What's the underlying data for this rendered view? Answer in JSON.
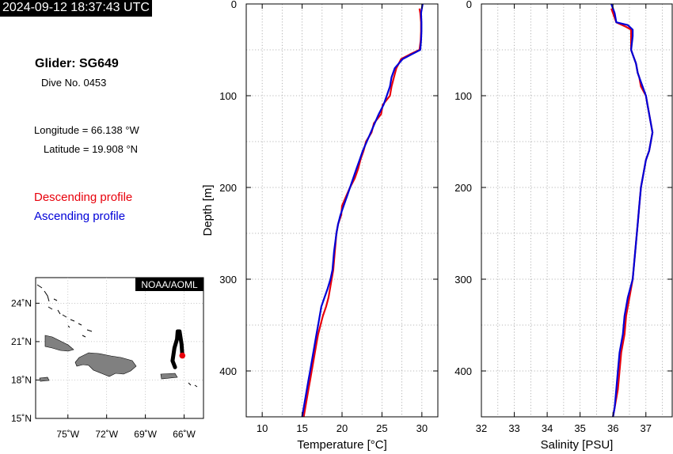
{
  "header": {
    "timestamp": "2024-09-12 18:37:43 UTC"
  },
  "info": {
    "glider": "Glider: SG649",
    "dive": "Dive No. 0453",
    "longitude": "Longitude = 66.138 °W",
    "latitude": "Latitude = 19.908 °N",
    "descending_label": "Descending profile",
    "ascending_label": "Ascending profile"
  },
  "colors": {
    "descending": "#e8000b",
    "ascending": "#0000d8",
    "land": "#808080",
    "track": "#000000"
  },
  "map": {
    "credit": "NOAA/AOML",
    "lon_ticks": [
      "75˚W",
      "72˚W",
      "69˚W",
      "66˚W"
    ],
    "lat_ticks": [
      "24˚N",
      "21˚N",
      "18˚N",
      "15˚N"
    ],
    "xlim": [
      -77.5,
      -64.5
    ],
    "ylim": [
      15,
      26
    ],
    "track": [
      [
        -66.7,
        19.0
      ],
      [
        -66.9,
        19.5
      ],
      [
        -66.75,
        20.5
      ],
      [
        -66.55,
        21.2
      ],
      [
        -66.5,
        21.8
      ],
      [
        -66.35,
        21.8
      ],
      [
        -66.2,
        20.8
      ],
      [
        -66.14,
        19.9
      ]
    ],
    "glider_position": [
      -66.138,
      19.908
    ]
  },
  "chart_data": [
    {
      "type": "line",
      "xlabel": "Temperature [°C]",
      "ylabel": "Depth [m]",
      "xlim": [
        8,
        32
      ],
      "ylim": [
        450,
        0
      ],
      "x_ticks": [
        10,
        15,
        20,
        25,
        30
      ],
      "y_ticks": [
        0,
        100,
        200,
        300,
        400
      ],
      "grid": true,
      "series": [
        {
          "name": "Descending profile",
          "depth": [
            5,
            10,
            20,
            30,
            40,
            50,
            55,
            60,
            70,
            80,
            90,
            100,
            110,
            120,
            130,
            140,
            150,
            160,
            170,
            180,
            190,
            200,
            210,
            220,
            230,
            240,
            250,
            260,
            270,
            280,
            290,
            300,
            310,
            320,
            330,
            340,
            350,
            360,
            370,
            380,
            390,
            400,
            410,
            420,
            430,
            440,
            450
          ],
          "values": [
            29.7,
            29.8,
            29.9,
            29.9,
            29.85,
            29.7,
            28.5,
            27.4,
            26.8,
            26.5,
            26.2,
            26.0,
            25.1,
            24.9,
            24.0,
            23.7,
            23.0,
            22.7,
            22.3,
            22.0,
            21.6,
            21.0,
            20.5,
            20.0,
            19.9,
            19.5,
            19.3,
            19.2,
            19.1,
            19.0,
            18.9,
            18.7,
            18.5,
            18.3,
            18.0,
            17.6,
            17.3,
            17.0,
            16.8,
            16.6,
            16.4,
            16.2,
            16.0,
            15.8,
            15.6,
            15.4,
            15.2
          ]
        },
        {
          "name": "Ascending profile",
          "depth": [
            0,
            10,
            20,
            30,
            40,
            50,
            55,
            60,
            70,
            80,
            90,
            100,
            110,
            120,
            130,
            140,
            150,
            160,
            170,
            180,
            190,
            200,
            210,
            220,
            230,
            240,
            250,
            260,
            270,
            280,
            290,
            300,
            310,
            320,
            330,
            340,
            350,
            360,
            370,
            380,
            390,
            400,
            410,
            420,
            430,
            440,
            450
          ],
          "values": [
            30.1,
            29.9,
            29.95,
            29.95,
            29.9,
            29.8,
            28.7,
            27.6,
            26.6,
            26.2,
            26.0,
            25.6,
            25.2,
            24.6,
            24.1,
            23.6,
            23.1,
            22.6,
            22.2,
            21.8,
            21.4,
            21.0,
            20.6,
            20.2,
            19.8,
            19.5,
            19.3,
            19.15,
            19.0,
            18.9,
            18.8,
            18.55,
            18.2,
            17.8,
            17.4,
            17.2,
            17.0,
            16.8,
            16.6,
            16.4,
            16.2,
            16.0,
            15.8,
            15.6,
            15.4,
            15.2,
            15.0
          ]
        }
      ]
    },
    {
      "type": "line",
      "xlabel": "Salinity [PSU]",
      "ylabel": "",
      "xlim": [
        32,
        37.8
      ],
      "ylim": [
        450,
        0
      ],
      "x_ticks": [
        32,
        33,
        34,
        35,
        36,
        37
      ],
      "y_ticks": [
        0,
        100,
        200,
        300,
        400
      ],
      "grid": true,
      "series": [
        {
          "name": "Descending profile",
          "depth": [
            5,
            15,
            20,
            25,
            28,
            35,
            50,
            55,
            65,
            75,
            80,
            90,
            100,
            110,
            120,
            130,
            140,
            150,
            160,
            170,
            180,
            190,
            200,
            220,
            240,
            260,
            280,
            300,
            320,
            340,
            360,
            380,
            400,
            420,
            440,
            450
          ],
          "values": [
            35.95,
            36.05,
            36.1,
            36.4,
            36.55,
            36.55,
            36.55,
            36.6,
            36.7,
            36.75,
            36.8,
            36.85,
            37.0,
            37.05,
            37.1,
            37.15,
            37.2,
            37.15,
            37.1,
            37.0,
            36.95,
            36.9,
            36.85,
            36.8,
            36.75,
            36.7,
            36.65,
            36.6,
            36.5,
            36.4,
            36.35,
            36.25,
            36.2,
            36.15,
            36.05,
            36.0
          ]
        },
        {
          "name": "Ascending profile",
          "depth": [
            0,
            10,
            20,
            23,
            28,
            35,
            50,
            55,
            65,
            75,
            80,
            90,
            100,
            110,
            120,
            130,
            140,
            150,
            160,
            170,
            180,
            190,
            200,
            220,
            240,
            260,
            280,
            300,
            320,
            340,
            360,
            380,
            400,
            420,
            440,
            450
          ],
          "values": [
            35.95,
            36.05,
            36.1,
            36.45,
            36.6,
            36.6,
            36.55,
            36.6,
            36.7,
            36.75,
            36.8,
            36.9,
            37.0,
            37.05,
            37.1,
            37.15,
            37.2,
            37.15,
            37.1,
            37.0,
            36.95,
            36.9,
            36.85,
            36.8,
            36.75,
            36.7,
            36.65,
            36.6,
            36.45,
            36.35,
            36.3,
            36.2,
            36.15,
            36.1,
            36.05,
            36.0
          ]
        }
      ]
    }
  ]
}
